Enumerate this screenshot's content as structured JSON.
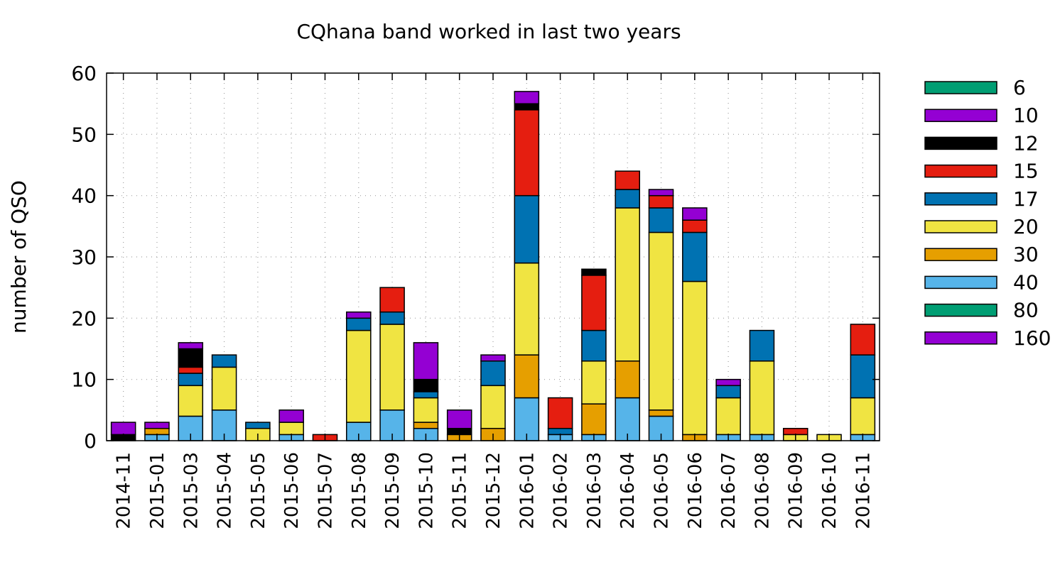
{
  "chart_data": {
    "type": "bar",
    "stacked": true,
    "title": "CQhana band worked in last two years",
    "xlabel": "",
    "ylabel": "number of QSO",
    "ylim": [
      0,
      60
    ],
    "yticks": [
      0,
      10,
      20,
      30,
      40,
      50,
      60
    ],
    "grid": true,
    "legend_position": "outside-right",
    "categories": [
      "2014-11",
      "2015-01",
      "2015-03",
      "2015-04",
      "2015-05",
      "2015-06",
      "2015-07",
      "2015-08",
      "2015-09",
      "2015-10",
      "2015-11",
      "2015-12",
      "2016-01",
      "2016-02",
      "2016-03",
      "2016-04",
      "2016-05",
      "2016-06",
      "2016-07",
      "2016-08",
      "2016-09",
      "2016-10",
      "2016-11"
    ],
    "series": [
      {
        "name": "160",
        "color": "#9400d3",
        "values": [
          0,
          0,
          0,
          0,
          0,
          0,
          0,
          0,
          0,
          0,
          0,
          0,
          0,
          0,
          0,
          0,
          0,
          0,
          0,
          0,
          0,
          0,
          0
        ]
      },
      {
        "name": "80",
        "color": "#009e73",
        "values": [
          0,
          0,
          0,
          0,
          0,
          0,
          0,
          0,
          0,
          0,
          0,
          0,
          0,
          0,
          0,
          0,
          0,
          0,
          0,
          0,
          0,
          0,
          0
        ]
      },
      {
        "name": "40",
        "color": "#56b4e9",
        "values": [
          0,
          1,
          4,
          5,
          0,
          1,
          0,
          3,
          5,
          2,
          0,
          0,
          7,
          1,
          1,
          7,
          4,
          0,
          1,
          1,
          0,
          0,
          1
        ]
      },
      {
        "name": "30",
        "color": "#e69f00",
        "values": [
          0,
          1,
          0,
          0,
          0,
          0,
          0,
          0,
          0,
          1,
          1,
          2,
          7,
          0,
          5,
          6,
          1,
          1,
          0,
          0,
          0,
          0,
          0
        ]
      },
      {
        "name": "20",
        "color": "#f0e442",
        "values": [
          0,
          0,
          5,
          7,
          2,
          2,
          0,
          15,
          14,
          4,
          0,
          7,
          15,
          0,
          7,
          25,
          29,
          25,
          6,
          12,
          1,
          1,
          6
        ]
      },
      {
        "name": "17",
        "color": "#0072b2",
        "values": [
          0,
          0,
          2,
          2,
          1,
          0,
          0,
          2,
          2,
          1,
          0,
          4,
          11,
          1,
          5,
          3,
          4,
          8,
          2,
          5,
          0,
          0,
          7
        ]
      },
      {
        "name": "15",
        "color": "#e51e10",
        "values": [
          0,
          0,
          1,
          0,
          0,
          0,
          1,
          0,
          4,
          0,
          0,
          0,
          14,
          5,
          9,
          3,
          2,
          2,
          0,
          0,
          1,
          0,
          5
        ]
      },
      {
        "name": "12",
        "color": "#000000",
        "values": [
          1,
          0,
          3,
          0,
          0,
          0,
          0,
          0,
          0,
          2,
          1,
          0,
          1,
          0,
          1,
          0,
          0,
          0,
          0,
          0,
          0,
          0,
          0
        ]
      },
      {
        "name": "10",
        "color": "#9400d3",
        "values": [
          2,
          1,
          1,
          0,
          0,
          2,
          0,
          1,
          0,
          6,
          3,
          1,
          2,
          0,
          0,
          0,
          1,
          2,
          1,
          0,
          0,
          0,
          0
        ]
      },
      {
        "name": "6",
        "color": "#009e73",
        "values": [
          0,
          0,
          0,
          0,
          0,
          0,
          0,
          0,
          0,
          0,
          0,
          0,
          0,
          0,
          0,
          0,
          0,
          0,
          0,
          0,
          0,
          0,
          0
        ]
      }
    ],
    "legend_order": [
      "6",
      "10",
      "12",
      "15",
      "17",
      "20",
      "30",
      "40",
      "80",
      "160"
    ]
  }
}
